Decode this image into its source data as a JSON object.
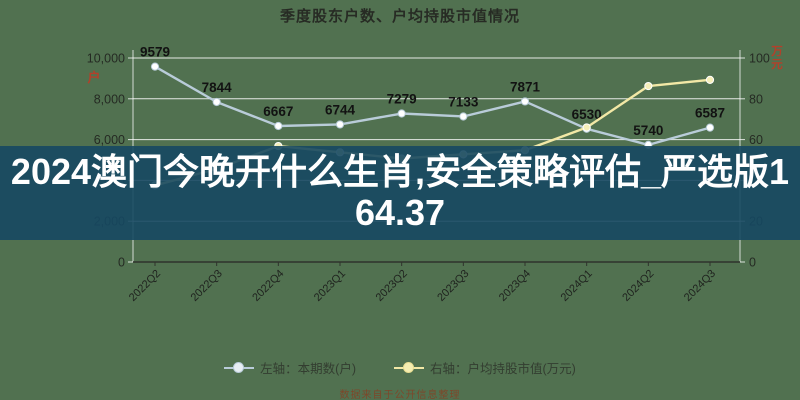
{
  "overlay": {
    "text": "2024澳门今晚开什么生肖,安全策略评估_严选版164.37"
  },
  "watermark": {
    "text": "数据来自于公开信息整理"
  },
  "chart_data": {
    "type": "line",
    "title": "季度股东户数、户均持股市值情况",
    "categories": [
      "2022Q2",
      "2022Q3",
      "2022Q4",
      "2023Q1",
      "2023Q2",
      "2023Q3",
      "2023Q4",
      "2024Q1",
      "2024Q2",
      "2024Q3"
    ],
    "series": [
      {
        "name": "本期数(户)",
        "axis": "left",
        "color": "#b9ccd9",
        "marker_fill": "#ffffff",
        "show_labels": true,
        "values": [
          9579,
          7844,
          6667,
          6744,
          7279,
          7133,
          7871,
          6530,
          5740,
          6587
        ]
      },
      {
        "name": "户均持股市值(万元)",
        "axis": "right",
        "color": "#f2e8a6",
        "marker_fill": "#f6efb9",
        "show_labels": false,
        "values": [
          37,
          45,
          56,
          53,
          50,
          52,
          54,
          65,
          85,
          88
        ]
      }
    ],
    "left_axis": {
      "unit": "户",
      "min": 0,
      "max": 10000,
      "tick_step": 2000
    },
    "right_axis": {
      "unit": "万元",
      "min": 0,
      "max": 100,
      "tick_step": 20
    },
    "legend": [
      "左轴：本期数(户)",
      "右轴：户均持股市值(万元)"
    ],
    "legend_position": "bottom",
    "grid": true
  },
  "colors": {
    "background": "#517150",
    "overlay_bg": "rgba(22,72,98,0.90)",
    "gridline": "#ffffff",
    "axis_text": "#252a23",
    "data_label": "#121212",
    "unit_label": "#b3402a",
    "series_left": "#b9ccd9",
    "series_right": "#f2e8a6",
    "watermark": "#8c3a1e"
  }
}
